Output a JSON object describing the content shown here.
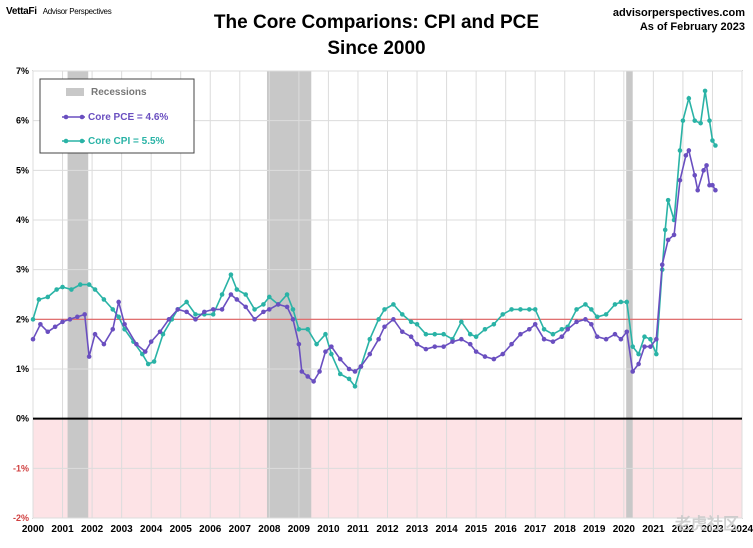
{
  "header": {
    "brand": "VettaFi",
    "brand_sub": "Advisor Perspectives",
    "title_line1": "The Core Comparions: CPI and PCE",
    "title_line2": "Since 2000",
    "source_line1": "advisorperspectives.com",
    "source_line2": "As of February 2023"
  },
  "watermark": "老虎社区",
  "chart_data": {
    "type": "line",
    "title": "The Core Comparions: CPI and PCE Since 2000",
    "ylim": [
      -2,
      7
    ],
    "xlim": [
      2000,
      2024
    ],
    "y_ticks": [
      "-2%",
      "-1%",
      "0%",
      "1%",
      "2%",
      "3%",
      "4%",
      "5%",
      "6%",
      "7%"
    ],
    "x_ticks": [
      "2000",
      "2001",
      "2002",
      "2003",
      "2004",
      "2005",
      "2006",
      "2007",
      "2008",
      "2009",
      "2010",
      "2011",
      "2012",
      "2013",
      "2014",
      "2015",
      "2016",
      "2017",
      "2018",
      "2019",
      "2020",
      "2021",
      "2022",
      "2023",
      "2024"
    ],
    "reference_line": 2,
    "legend": {
      "placement": "top-left",
      "recessions_label": "Recessions",
      "pce_label": "Core PCE = 4.6%",
      "cpi_label": "Core CPI =  5.5%"
    },
    "colors": {
      "pce": "#6a4fc0",
      "cpi": "#2ab3a6",
      "recession": "#c8c8c8",
      "negative_band": "#fde3e6",
      "ref_line": "#e06060"
    },
    "recessions": [
      [
        2001.17,
        2001.87
      ],
      [
        2007.92,
        2009.42
      ],
      [
        2020.08,
        2020.3
      ]
    ],
    "series": [
      {
        "name": "Core PCE",
        "key": "pce",
        "points": [
          [
            2000.0,
            1.6
          ],
          [
            2000.25,
            1.9
          ],
          [
            2000.5,
            1.75
          ],
          [
            2000.75,
            1.85
          ],
          [
            2001.0,
            1.95
          ],
          [
            2001.25,
            2.0
          ],
          [
            2001.5,
            2.05
          ],
          [
            2001.75,
            2.1
          ],
          [
            2001.9,
            1.25
          ],
          [
            2002.1,
            1.7
          ],
          [
            2002.4,
            1.5
          ],
          [
            2002.7,
            1.8
          ],
          [
            2002.9,
            2.35
          ],
          [
            2003.1,
            1.9
          ],
          [
            2003.5,
            1.5
          ],
          [
            2003.8,
            1.35
          ],
          [
            2004.0,
            1.55
          ],
          [
            2004.3,
            1.75
          ],
          [
            2004.6,
            2.0
          ],
          [
            2004.9,
            2.2
          ],
          [
            2005.2,
            2.15
          ],
          [
            2005.5,
            2.0
          ],
          [
            2005.8,
            2.15
          ],
          [
            2006.1,
            2.2
          ],
          [
            2006.4,
            2.2
          ],
          [
            2006.7,
            2.5
          ],
          [
            2006.9,
            2.4
          ],
          [
            2007.2,
            2.25
          ],
          [
            2007.5,
            2.0
          ],
          [
            2007.8,
            2.15
          ],
          [
            2008.0,
            2.2
          ],
          [
            2008.3,
            2.3
          ],
          [
            2008.6,
            2.25
          ],
          [
            2008.8,
            2.0
          ],
          [
            2009.0,
            1.5
          ],
          [
            2009.1,
            0.95
          ],
          [
            2009.3,
            0.85
          ],
          [
            2009.5,
            0.75
          ],
          [
            2009.7,
            0.95
          ],
          [
            2009.9,
            1.35
          ],
          [
            2010.1,
            1.45
          ],
          [
            2010.4,
            1.2
          ],
          [
            2010.7,
            1.0
          ],
          [
            2010.9,
            0.95
          ],
          [
            2011.1,
            1.05
          ],
          [
            2011.4,
            1.3
          ],
          [
            2011.7,
            1.6
          ],
          [
            2011.9,
            1.85
          ],
          [
            2012.2,
            2.0
          ],
          [
            2012.5,
            1.75
          ],
          [
            2012.8,
            1.65
          ],
          [
            2013.0,
            1.5
          ],
          [
            2013.3,
            1.4
          ],
          [
            2013.6,
            1.45
          ],
          [
            2013.9,
            1.45
          ],
          [
            2014.2,
            1.55
          ],
          [
            2014.5,
            1.6
          ],
          [
            2014.8,
            1.5
          ],
          [
            2015.0,
            1.35
          ],
          [
            2015.3,
            1.25
          ],
          [
            2015.6,
            1.2
          ],
          [
            2015.9,
            1.3
          ],
          [
            2016.2,
            1.5
          ],
          [
            2016.5,
            1.7
          ],
          [
            2016.8,
            1.8
          ],
          [
            2017.0,
            1.9
          ],
          [
            2017.3,
            1.6
          ],
          [
            2017.6,
            1.55
          ],
          [
            2017.9,
            1.65
          ],
          [
            2018.1,
            1.8
          ],
          [
            2018.4,
            1.95
          ],
          [
            2018.7,
            2.0
          ],
          [
            2018.9,
            1.9
          ],
          [
            2019.1,
            1.65
          ],
          [
            2019.4,
            1.6
          ],
          [
            2019.7,
            1.7
          ],
          [
            2019.9,
            1.6
          ],
          [
            2020.1,
            1.75
          ],
          [
            2020.3,
            0.95
          ],
          [
            2020.5,
            1.1
          ],
          [
            2020.7,
            1.45
          ],
          [
            2020.9,
            1.45
          ],
          [
            2021.1,
            1.6
          ],
          [
            2021.3,
            3.1
          ],
          [
            2021.5,
            3.6
          ],
          [
            2021.7,
            3.7
          ],
          [
            2021.9,
            4.8
          ],
          [
            2022.1,
            5.3
          ],
          [
            2022.2,
            5.4
          ],
          [
            2022.4,
            4.9
          ],
          [
            2022.5,
            4.6
          ],
          [
            2022.7,
            5.0
          ],
          [
            2022.8,
            5.1
          ],
          [
            2022.9,
            4.7
          ],
          [
            2023.0,
            4.7
          ],
          [
            2023.1,
            4.6
          ]
        ]
      },
      {
        "name": "Core CPI",
        "key": "cpi",
        "points": [
          [
            2000.0,
            2.0
          ],
          [
            2000.2,
            2.4
          ],
          [
            2000.5,
            2.45
          ],
          [
            2000.8,
            2.6
          ],
          [
            2001.0,
            2.65
          ],
          [
            2001.3,
            2.6
          ],
          [
            2001.6,
            2.7
          ],
          [
            2001.9,
            2.7
          ],
          [
            2002.1,
            2.6
          ],
          [
            2002.4,
            2.4
          ],
          [
            2002.7,
            2.2
          ],
          [
            2002.9,
            2.05
          ],
          [
            2003.1,
            1.8
          ],
          [
            2003.4,
            1.55
          ],
          [
            2003.7,
            1.3
          ],
          [
            2003.9,
            1.1
          ],
          [
            2004.1,
            1.15
          ],
          [
            2004.4,
            1.7
          ],
          [
            2004.7,
            2.0
          ],
          [
            2004.9,
            2.2
          ],
          [
            2005.2,
            2.35
          ],
          [
            2005.5,
            2.1
          ],
          [
            2005.8,
            2.1
          ],
          [
            2006.1,
            2.1
          ],
          [
            2006.4,
            2.5
          ],
          [
            2006.7,
            2.9
          ],
          [
            2006.9,
            2.6
          ],
          [
            2007.2,
            2.5
          ],
          [
            2007.5,
            2.2
          ],
          [
            2007.8,
            2.3
          ],
          [
            2008.0,
            2.45
          ],
          [
            2008.3,
            2.3
          ],
          [
            2008.6,
            2.5
          ],
          [
            2008.8,
            2.2
          ],
          [
            2009.0,
            1.8
          ],
          [
            2009.3,
            1.8
          ],
          [
            2009.6,
            1.5
          ],
          [
            2009.9,
            1.7
          ],
          [
            2010.1,
            1.3
          ],
          [
            2010.4,
            0.9
          ],
          [
            2010.7,
            0.8
          ],
          [
            2010.9,
            0.65
          ],
          [
            2011.1,
            1.05
          ],
          [
            2011.4,
            1.6
          ],
          [
            2011.7,
            2.0
          ],
          [
            2011.9,
            2.2
          ],
          [
            2012.2,
            2.3
          ],
          [
            2012.5,
            2.1
          ],
          [
            2012.8,
            1.95
          ],
          [
            2013.0,
            1.9
          ],
          [
            2013.3,
            1.7
          ],
          [
            2013.6,
            1.7
          ],
          [
            2013.9,
            1.7
          ],
          [
            2014.2,
            1.6
          ],
          [
            2014.5,
            1.95
          ],
          [
            2014.8,
            1.7
          ],
          [
            2015.0,
            1.65
          ],
          [
            2015.3,
            1.8
          ],
          [
            2015.6,
            1.9
          ],
          [
            2015.9,
            2.1
          ],
          [
            2016.2,
            2.2
          ],
          [
            2016.5,
            2.2
          ],
          [
            2016.8,
            2.2
          ],
          [
            2017.0,
            2.2
          ],
          [
            2017.3,
            1.8
          ],
          [
            2017.6,
            1.7
          ],
          [
            2017.9,
            1.8
          ],
          [
            2018.1,
            1.85
          ],
          [
            2018.4,
            2.2
          ],
          [
            2018.7,
            2.3
          ],
          [
            2018.9,
            2.2
          ],
          [
            2019.1,
            2.05
          ],
          [
            2019.4,
            2.1
          ],
          [
            2019.7,
            2.3
          ],
          [
            2019.9,
            2.35
          ],
          [
            2020.1,
            2.35
          ],
          [
            2020.3,
            1.45
          ],
          [
            2020.5,
            1.3
          ],
          [
            2020.7,
            1.65
          ],
          [
            2020.9,
            1.6
          ],
          [
            2021.1,
            1.3
          ],
          [
            2021.3,
            3.0
          ],
          [
            2021.4,
            3.8
          ],
          [
            2021.5,
            4.4
          ],
          [
            2021.7,
            4.0
          ],
          [
            2021.9,
            5.4
          ],
          [
            2022.0,
            6.0
          ],
          [
            2022.2,
            6.45
          ],
          [
            2022.4,
            6.0
          ],
          [
            2022.6,
            5.95
          ],
          [
            2022.75,
            6.6
          ],
          [
            2022.9,
            6.0
          ],
          [
            2023.0,
            5.6
          ],
          [
            2023.1,
            5.5
          ]
        ]
      }
    ]
  }
}
